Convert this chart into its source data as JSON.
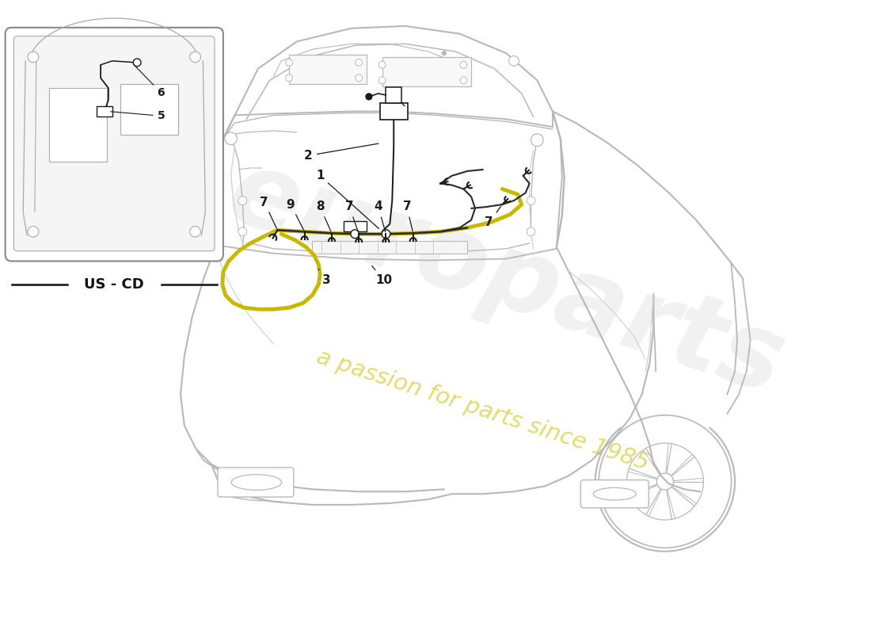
{
  "background_color": "#ffffff",
  "car_color": "#b8b8b8",
  "car_color2": "#d0d0d0",
  "part_color": "#1a1a1a",
  "cable_yellow": "#c8b800",
  "cable_dark": "#2a2a2a",
  "wm1_color": "#d0d0d0",
  "wm2_color": "#d4c820",
  "wm1_text": "europarts",
  "wm2_text": "a passion for parts since 1985",
  "us_cd": "US - CD",
  "figsize": [
    11.0,
    8.0
  ],
  "dpi": 100,
  "xlim": [
    0,
    11
  ],
  "ylim": [
    0,
    8
  ]
}
